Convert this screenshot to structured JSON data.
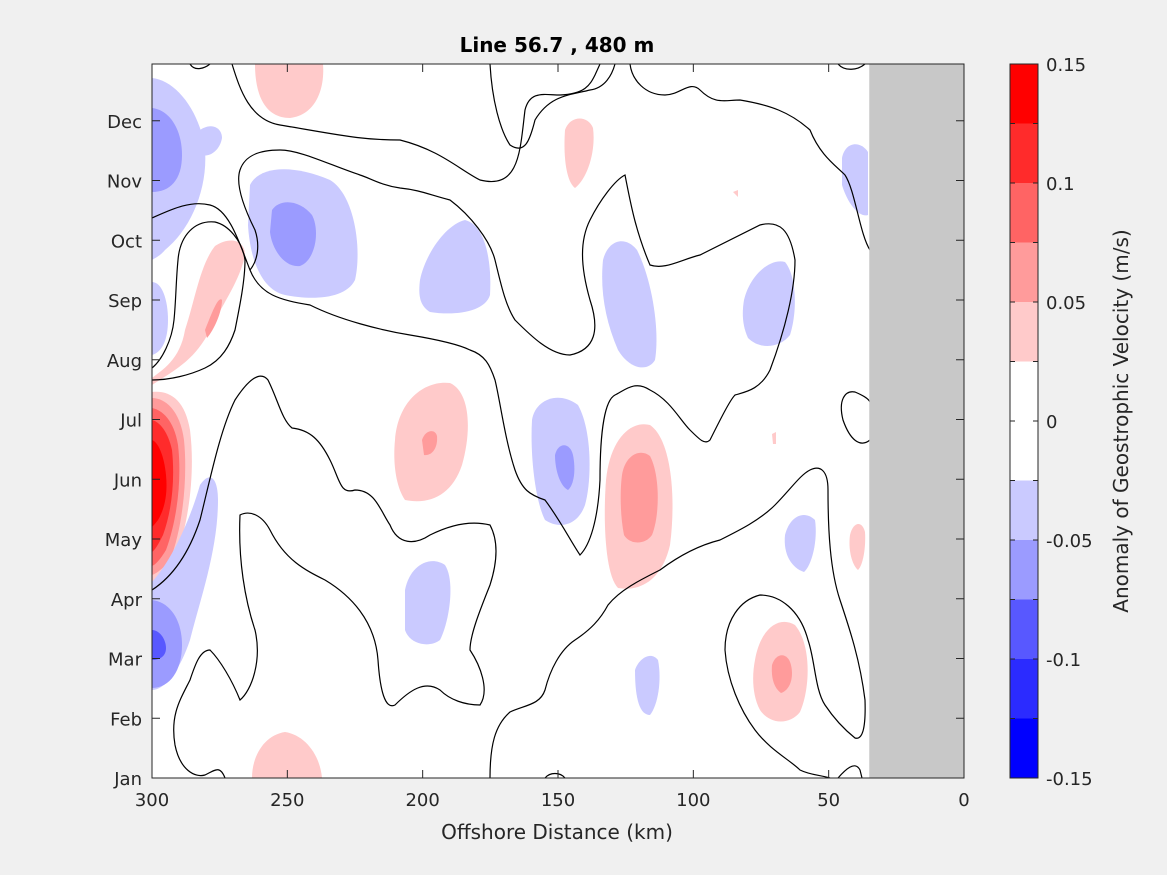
{
  "chart_data": {
    "type": "heatmap",
    "title": "Line 56.7 , 480 m",
    "xlabel": "Offshore Distance (km)",
    "ylabel": "",
    "xlim": [
      300,
      0
    ],
    "x_ticks": [
      "300",
      "250",
      "200",
      "150",
      "100",
      "50",
      "0"
    ],
    "x_tick_values": [
      300,
      250,
      200,
      150,
      100,
      50,
      0
    ],
    "y_ticks": [
      "Jan",
      "Feb",
      "Mar",
      "Apr",
      "May",
      "Jun",
      "Jul",
      "Aug",
      "Sep",
      "Oct",
      "Nov",
      "Dec"
    ],
    "colorbar": {
      "label": "Anomaly of Geostrophic Velocity (m/s)",
      "ticks": [
        "0.15",
        "0.1",
        "0.05",
        "0",
        "-0.05",
        "-0.1",
        "-0.15"
      ],
      "range": [
        -0.15,
        0.15
      ],
      "levels": 12,
      "colors": [
        "#0000ff",
        "#2b2bff",
        "#5858ff",
        "#9b9bff",
        "#cacaff",
        "#ffffff",
        "#ffffff",
        "#ffcaca",
        "#ff9b9b",
        "#ff6464",
        "#ff2b2b",
        "#ff0000"
      ]
    },
    "no_data_region": {
      "x_from_km": 35,
      "x_to_km": 0,
      "color": "#c8c8c8"
    },
    "features": [
      {
        "month": 5.5,
        "x_km": 297,
        "value": 0.15
      },
      {
        "month": 8.3,
        "x_km": 277,
        "value": 0.05
      },
      {
        "month": 11.0,
        "x_km": 295,
        "value": -0.08
      },
      {
        "month": 2.8,
        "x_km": 295,
        "value": -0.08
      },
      {
        "month": 9.7,
        "x_km": 257,
        "value": -0.08
      },
      {
        "month": 11.8,
        "x_km": 252,
        "value": 0.03
      },
      {
        "month": 6.3,
        "x_km": 197,
        "value": 0.06
      },
      {
        "month": 8.8,
        "x_km": 188,
        "value": -0.03
      },
      {
        "month": 3.5,
        "x_km": 193,
        "value": -0.03
      },
      {
        "month": 5.7,
        "x_km": 148,
        "value": -0.06
      },
      {
        "month": 11.5,
        "x_km": 137,
        "value": 0.03
      },
      {
        "month": 5.4,
        "x_km": 122,
        "value": 0.07
      },
      {
        "month": 8.4,
        "x_km": 122,
        "value": -0.03
      },
      {
        "month": 2.1,
        "x_km": 155,
        "value": -0.03
      },
      {
        "month": 8.4,
        "x_km": 68,
        "value": -0.03
      },
      {
        "month": 2.8,
        "x_km": 68,
        "value": 0.07
      },
      {
        "month": 4.9,
        "x_km": 61,
        "value": -0.03
      },
      {
        "month": 10.8,
        "x_km": 42,
        "value": -0.03
      },
      {
        "month": 4.8,
        "x_km": 38,
        "value": 0.03
      },
      {
        "month": 0.4,
        "x_km": 252,
        "value": 0.03
      }
    ],
    "grid": false
  }
}
